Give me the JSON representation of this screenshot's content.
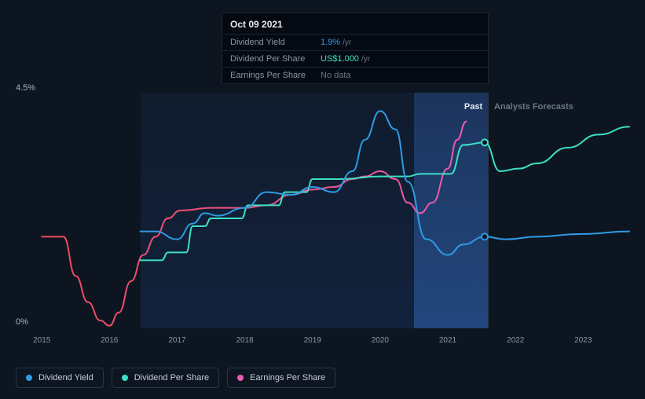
{
  "chart": {
    "type": "line",
    "background_color": "#0d1521",
    "ylim": [
      0,
      4.5
    ],
    "y_axis": {
      "top_label": "4.5%",
      "bottom_label": "0%"
    },
    "x_axis": {
      "years": [
        "2015",
        "2016",
        "2017",
        "2018",
        "2019",
        "2020",
        "2021",
        "2022",
        "2023"
      ],
      "positions_pct": [
        4.5,
        15.5,
        26.5,
        37.5,
        48.5,
        59.5,
        70.5,
        81.5,
        92.5
      ]
    },
    "past_region": {
      "start_pct": 20.5,
      "end_pct": 77
    },
    "cursor_region": {
      "start_pct": 65,
      "end_pct": 77
    },
    "divider_label": {
      "past": "Past",
      "forecast": "Analysts Forecasts"
    },
    "series": {
      "dividend_yield": {
        "color": "#2e9be6",
        "width": 2,
        "points": [
          [
            20.5,
            1.85
          ],
          [
            23,
            1.85
          ],
          [
            26.5,
            1.7
          ],
          [
            29,
            2.0
          ],
          [
            31,
            2.2
          ],
          [
            33,
            2.15
          ],
          [
            37.5,
            2.3
          ],
          [
            41,
            2.6
          ],
          [
            45,
            2.55
          ],
          [
            48.5,
            2.7
          ],
          [
            52,
            2.6
          ],
          [
            55,
            3.0
          ],
          [
            57,
            3.6
          ],
          [
            59.5,
            4.15
          ],
          [
            62,
            3.8
          ],
          [
            64,
            2.8
          ],
          [
            67,
            1.7
          ],
          [
            70.5,
            1.4
          ],
          [
            73,
            1.6
          ],
          [
            76.5,
            1.75
          ],
          [
            80,
            1.7
          ],
          [
            85,
            1.75
          ],
          [
            92,
            1.8
          ],
          [
            100,
            1.85
          ]
        ],
        "end_marker": {
          "x_pct": 76.5,
          "y_val": 1.75
        }
      },
      "dividend_per_share": {
        "color": "#3be0c5",
        "width": 2,
        "points": [
          [
            20.5,
            1.3
          ],
          [
            24,
            1.3
          ],
          [
            25,
            1.45
          ],
          [
            28,
            1.45
          ],
          [
            29,
            1.95
          ],
          [
            31,
            1.95
          ],
          [
            32,
            2.1
          ],
          [
            37,
            2.1
          ],
          [
            38,
            2.35
          ],
          [
            43,
            2.35
          ],
          [
            44,
            2.6
          ],
          [
            47.5,
            2.6
          ],
          [
            48.5,
            2.85
          ],
          [
            52,
            2.85
          ],
          [
            53,
            2.85
          ],
          [
            59.5,
            2.9
          ],
          [
            64,
            2.9
          ],
          [
            66,
            2.95
          ],
          [
            71,
            2.95
          ],
          [
            73,
            3.5
          ],
          [
            76.5,
            3.55
          ],
          [
            79,
            3.0
          ],
          [
            82,
            3.05
          ],
          [
            85,
            3.15
          ],
          [
            90,
            3.45
          ],
          [
            95,
            3.7
          ],
          [
            100,
            3.85
          ]
        ],
        "end_marker": {
          "x_pct": 76.5,
          "y_val": 3.55
        }
      },
      "earnings_per_share": {
        "color_gradient": [
          "#f04a5a",
          "#e85bb0"
        ],
        "width": 2,
        "points": [
          [
            4.5,
            1.75
          ],
          [
            8,
            1.75
          ],
          [
            10,
            1.0
          ],
          [
            12,
            0.5
          ],
          [
            14,
            0.15
          ],
          [
            15.5,
            0.05
          ],
          [
            17,
            0.3
          ],
          [
            19,
            0.9
          ],
          [
            21,
            1.4
          ],
          [
            23,
            1.75
          ],
          [
            25,
            2.1
          ],
          [
            27,
            2.25
          ],
          [
            32,
            2.3
          ],
          [
            37.5,
            2.3
          ],
          [
            41,
            2.35
          ],
          [
            45,
            2.55
          ],
          [
            48.5,
            2.65
          ],
          [
            52,
            2.7
          ],
          [
            55,
            2.85
          ],
          [
            57,
            2.9
          ],
          [
            59.5,
            3.0
          ],
          [
            62,
            2.85
          ],
          [
            64,
            2.4
          ],
          [
            66,
            2.2
          ],
          [
            68,
            2.4
          ],
          [
            70.5,
            3.05
          ],
          [
            72,
            3.6
          ],
          [
            73.5,
            3.95
          ]
        ]
      }
    }
  },
  "tooltip": {
    "date": "Oct 09 2021",
    "rows": [
      {
        "label": "Dividend Yield",
        "value": "1.9%",
        "suffix": "/yr",
        "color": "#2e9be6"
      },
      {
        "label": "Dividend Per Share",
        "value": "US$1.000",
        "suffix": "/yr",
        "color": "#3be0c5"
      },
      {
        "label": "Earnings Per Share",
        "value": "No data",
        "suffix": "",
        "color": "#6b7685"
      }
    ]
  },
  "legend": {
    "items": [
      {
        "label": "Dividend Yield",
        "color": "#2e9be6"
      },
      {
        "label": "Dividend Per Share",
        "color": "#3be0c5"
      },
      {
        "label": "Earnings Per Share",
        "color": "#e85bb0"
      }
    ]
  }
}
